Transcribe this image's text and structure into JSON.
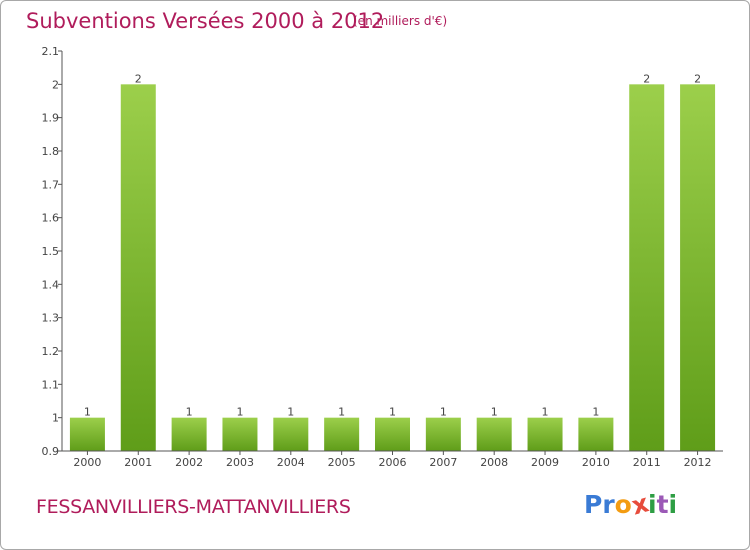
{
  "title": "Subventions Versées 2000 à 2012",
  "subtitle": "(en milliers d'€)",
  "commune": "FESSANVILLIERS-MATTANVILLIERS",
  "logo": {
    "letters": [
      "P",
      "r",
      "o",
      "x",
      "i",
      "t",
      "i"
    ],
    "colors": [
      "#3a7bd5",
      "#3a7bd5",
      "#f39c12",
      "#e74c3c",
      "#2e9e44",
      "#9b59b6",
      "#2e9e44"
    ]
  },
  "colors": {
    "bar_top": "#9ccf4b",
    "bar_bottom": "#5f9d19",
    "axis": "#555555",
    "text": "#444444",
    "title": "#b01c5b"
  },
  "chart_data": {
    "type": "bar",
    "title": "Subventions Versées 2000 à 2012",
    "subtitle": "(en milliers d'€)",
    "categories": [
      "2000",
      "2001",
      "2002",
      "2003",
      "2004",
      "2005",
      "2006",
      "2007",
      "2008",
      "2009",
      "2010",
      "2011",
      "2012"
    ],
    "values": [
      1,
      2,
      1,
      1,
      1,
      1,
      1,
      1,
      1,
      1,
      1,
      2,
      2
    ],
    "data_labels": [
      "1",
      "2",
      "1",
      "1",
      "1",
      "1",
      "1",
      "1",
      "1",
      "1",
      "1",
      "2",
      "2"
    ],
    "ylim": [
      0.9,
      2.1
    ],
    "yticks": [
      "0.9",
      "1",
      "1.1",
      "1.2",
      "1.3",
      "1.4",
      "1.5",
      "1.6",
      "1.7",
      "1.8",
      "1.9",
      "2",
      "2.1"
    ],
    "ytick_values": [
      0.9,
      1.0,
      1.1,
      1.2,
      1.3,
      1.4,
      1.5,
      1.6,
      1.7,
      1.8,
      1.9,
      2.0,
      2.1
    ],
    "grid": false,
    "legend": "none"
  }
}
